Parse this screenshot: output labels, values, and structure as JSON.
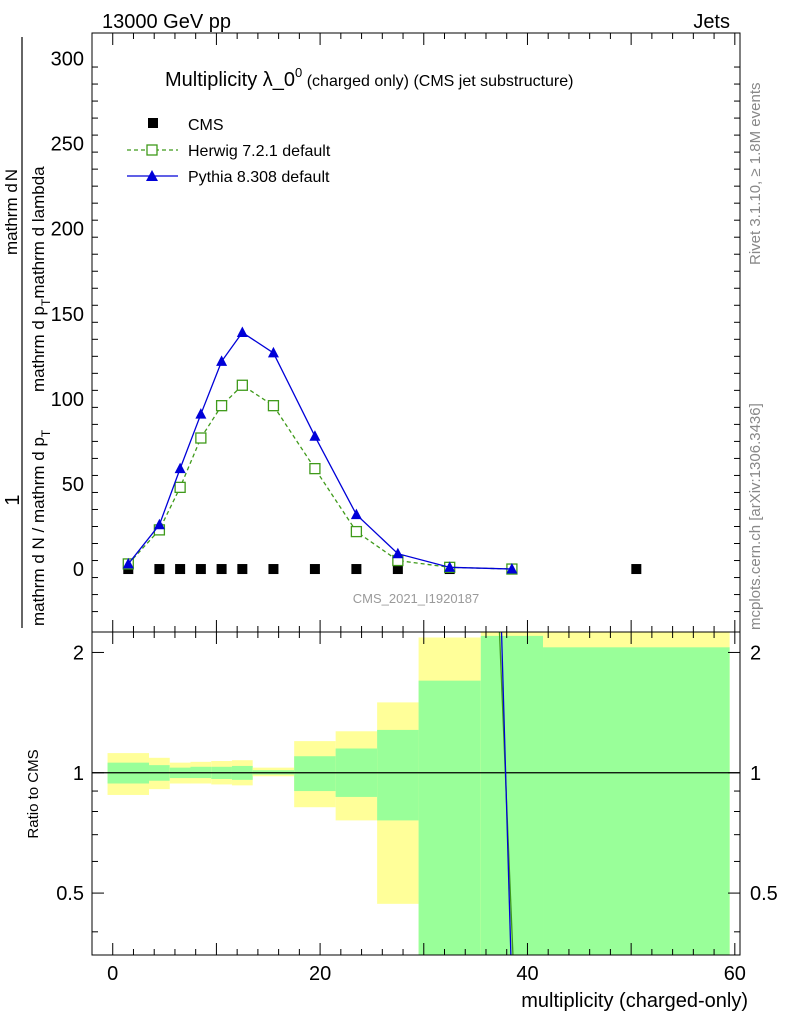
{
  "header": {
    "left": "13000 GeV pp",
    "right": "Jets"
  },
  "side_labels": {
    "rivet": "Rivet 3.1.10, ≥ 1.8M events",
    "mcplots": "mcplots.cern.ch [arXiv:1306.3436]"
  },
  "chart_data": [
    {
      "type": "line",
      "panel": "main",
      "title_main": "Multiplicity λ_0",
      "title_sup": "0",
      "title_rest": " (charged only) (CMS jet substructure)",
      "watermark": "CMS_2021_I1920187",
      "ylabel_num": "1",
      "ylabel_den": "mathrm d N / mathrm d p",
      "ylabel_sub": "T",
      "ylabel_right_num": "mathrm d",
      "ylabel_right_num2": "N",
      "ylabel_right_den": "mathrm d p",
      "ylabel_right_sub": "T",
      "ylabel_right_den2": "mathrm d lambda",
      "xlim": [
        -2,
        60.5
      ],
      "ylim": [
        -37,
        315
      ],
      "yticks": [
        0,
        50,
        100,
        150,
        200,
        250,
        300
      ],
      "legend_position": "top-left",
      "series": [
        {
          "name": "CMS",
          "marker": "square-filled",
          "color": "#000000",
          "x": [
            1.5,
            4.5,
            6.5,
            8.5,
            10.5,
            12.5,
            15.5,
            19.5,
            23.5,
            27.5,
            32.5,
            38.5,
            50.5
          ],
          "y": [
            0,
            0,
            0,
            0,
            0,
            0,
            0,
            0,
            0,
            0,
            0,
            0,
            0
          ]
        },
        {
          "name": "Herwig 7.2.1 default",
          "marker": "square-open",
          "line": "dashed",
          "color": "#3f9a1a",
          "x": [
            1.5,
            4.5,
            6.5,
            8.5,
            10.5,
            12.5,
            15.5,
            19.5,
            23.5,
            27.5,
            32.5,
            38.5
          ],
          "y": [
            3,
            23,
            48,
            77,
            96,
            108,
            96,
            59,
            22,
            5,
            1,
            0
          ]
        },
        {
          "name": "Pythia 8.308 default",
          "marker": "triangle-filled",
          "line": "solid",
          "color": "#0000d8",
          "x": [
            1.5,
            4.5,
            6.5,
            8.5,
            10.5,
            12.5,
            15.5,
            19.5,
            23.5,
            27.5,
            32.5,
            38.5
          ],
          "y": [
            3,
            26,
            59,
            91,
            122,
            139,
            127,
            78,
            32,
            9,
            1,
            0
          ]
        }
      ]
    },
    {
      "type": "area",
      "panel": "ratio",
      "ylabel": "Ratio to CMS",
      "xlabel": "multiplicity (charged-only)",
      "xlim": [
        -2,
        60.5
      ],
      "ylim": [
        0.35,
        2.25
      ],
      "xticks": [
        0,
        20,
        40,
        60
      ],
      "yticks": [
        0.5,
        1,
        2
      ],
      "ytick_labels": [
        "0.5",
        "1",
        "2"
      ],
      "bins": [
        {
          "lo": -0.5,
          "hi": 3.5,
          "y2lo": 0.88,
          "y2hi": 1.12,
          "y1lo": 0.94,
          "y1hi": 1.06
        },
        {
          "lo": 3.5,
          "hi": 5.5,
          "y2lo": 0.91,
          "y2hi": 1.09,
          "y1lo": 0.955,
          "y1hi": 1.045
        },
        {
          "lo": 5.5,
          "hi": 7.5,
          "y2lo": 0.94,
          "y2hi": 1.06,
          "y1lo": 0.97,
          "y1hi": 1.03
        },
        {
          "lo": 7.5,
          "hi": 9.5,
          "y2lo": 0.94,
          "y2hi": 1.065,
          "y1lo": 0.97,
          "y1hi": 1.035
        },
        {
          "lo": 9.5,
          "hi": 11.5,
          "y2lo": 0.935,
          "y2hi": 1.07,
          "y1lo": 0.965,
          "y1hi": 1.035
        },
        {
          "lo": 11.5,
          "hi": 13.5,
          "y2lo": 0.93,
          "y2hi": 1.075,
          "y1lo": 0.96,
          "y1hi": 1.04
        },
        {
          "lo": 13.5,
          "hi": 17.5,
          "y2lo": 0.98,
          "y2hi": 1.03,
          "y1lo": 0.99,
          "y1hi": 1.015
        },
        {
          "lo": 17.5,
          "hi": 21.5,
          "y2lo": 0.82,
          "y2hi": 1.2,
          "y1lo": 0.9,
          "y1hi": 1.1
        },
        {
          "lo": 21.5,
          "hi": 25.5,
          "y2lo": 0.76,
          "y2hi": 1.27,
          "y1lo": 0.87,
          "y1hi": 1.15
        },
        {
          "lo": 25.5,
          "hi": 29.5,
          "y2lo": 0.47,
          "y2hi": 1.5,
          "y1lo": 0.76,
          "y1hi": 1.28
        },
        {
          "lo": 29.5,
          "hi": 35.5,
          "y2lo": 0.35,
          "y2hi": 2.18,
          "y1lo": 0.35,
          "y1hi": 1.7
        },
        {
          "lo": 35.5,
          "hi": 41.5,
          "y2lo": 0.35,
          "y2hi": 2.25,
          "y1lo": 0.35,
          "y1hi": 2.2
        },
        {
          "lo": 41.5,
          "hi": 59.5,
          "y2lo": 0.35,
          "y2hi": 2.25,
          "y1lo": 0.35,
          "y1hi": 2.06
        }
      ],
      "series": [
        {
          "name": "Herwig 7.2.1 default",
          "color": "#3f9a1a",
          "x": [
            37.3,
            38.6
          ],
          "y": [
            2.25,
            0.35
          ]
        },
        {
          "name": "Pythia 8.308 default",
          "color": "#0000d8",
          "x": [
            37.5,
            38.4
          ],
          "y": [
            2.25,
            0.35
          ]
        }
      ]
    }
  ]
}
